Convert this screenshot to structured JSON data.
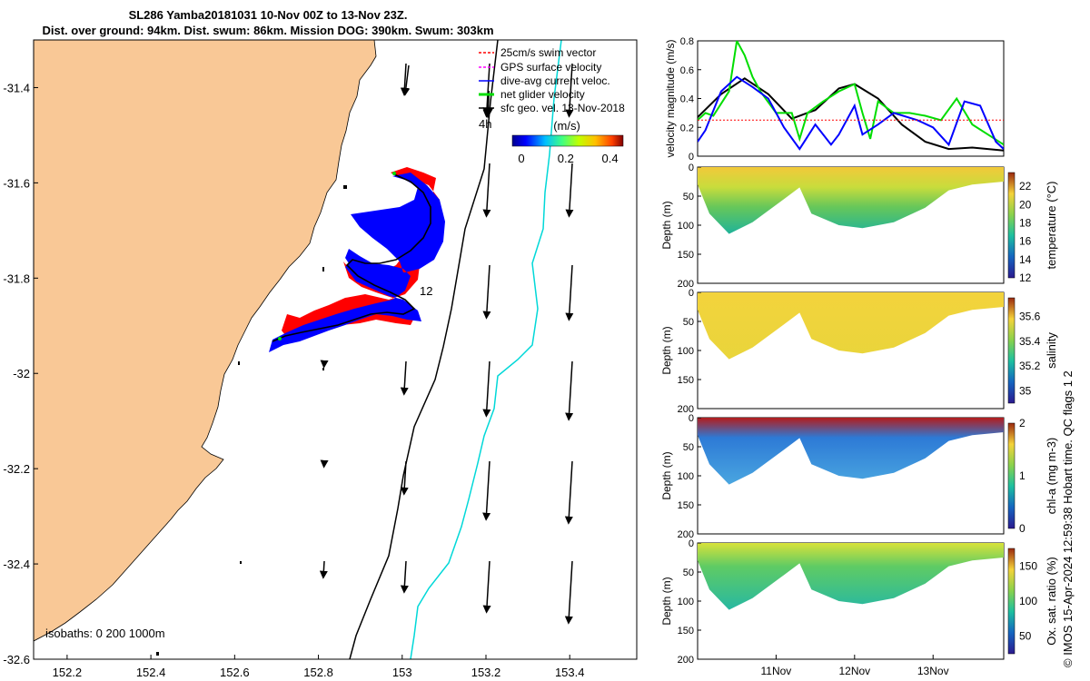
{
  "title_line1": "SL286 Yamba20181031 10-Nov 00Z to 13-Nov 23Z.",
  "title_line2": "Dist. over ground: 94km. Dist. swum: 86km. Mission DOG: 390km. Swum: 303km",
  "footer": "© IMOS 15-Apr-2024 12:59:38 Hobart time. QC flags 1  2",
  "map": {
    "x_ticks": [
      "152.2",
      "152.4",
      "152.6",
      "152.8",
      "153",
      "153.2",
      "153.4"
    ],
    "y_ticks": [
      "-31.4",
      "-31.6",
      "-31.8",
      "-32",
      "-32.2",
      "-32.4",
      "-32.6"
    ],
    "xlim": [
      152.12,
      153.56
    ],
    "ylim": [
      -32.6,
      -31.3
    ],
    "isobath_label": "isobaths: 0   200  1000m",
    "label_4h": "4h",
    "label_12": "12",
    "legend": [
      {
        "label": "25cm/s swim vector",
        "color": "#ff0000"
      },
      {
        "label": "GPS surface velocity",
        "color": "#ff00ff"
      },
      {
        "label": "dive-avg current veloc.",
        "color": "#0000ff"
      },
      {
        "label": "net glider velocity",
        "color": "#00dd00"
      },
      {
        "label": "sfc geo. vel. 13-Nov-2018",
        "color": "#000000"
      }
    ],
    "colorbar": {
      "unit": "(m/s)",
      "ticks": [
        "0",
        "0.2",
        "0.4"
      ]
    },
    "colors": {
      "land": "#f9c896",
      "track_blue": "#0000ff",
      "track_red": "#ff0000",
      "isobath_200": "#000000",
      "isobath_1000": "#00d8d8"
    }
  },
  "chart_data": [
    {
      "type": "line",
      "ylabel": "velocity magnitude (m/s)",
      "ylim": [
        0,
        0.8
      ],
      "yticks": [
        "0",
        "0.2",
        "0.4",
        "0.6",
        "0.8"
      ],
      "series": [
        {
          "color": "#000000",
          "x": [
            0,
            0.3,
            0.6,
            0.9,
            1.2,
            1.5,
            1.8,
            2.0,
            2.3,
            2.6,
            2.9,
            3.2,
            3.5,
            3.9
          ],
          "values": [
            0.27,
            0.43,
            0.54,
            0.43,
            0.26,
            0.32,
            0.47,
            0.5,
            0.4,
            0.22,
            0.1,
            0.05,
            0.06,
            0.04
          ]
        },
        {
          "color": "#00dd00",
          "x": [
            0,
            0.1,
            0.2,
            0.4,
            0.5,
            0.6,
            0.7,
            0.8,
            1.0,
            1.2,
            1.3,
            1.4,
            1.6,
            1.8,
            2.0,
            2.1,
            2.2,
            2.3,
            2.5,
            2.7,
            2.9,
            3.1,
            3.3,
            3.5,
            3.7,
            3.9
          ],
          "values": [
            0.25,
            0.3,
            0.28,
            0.45,
            0.8,
            0.7,
            0.55,
            0.45,
            0.3,
            0.3,
            0.12,
            0.3,
            0.38,
            0.45,
            0.5,
            0.3,
            0.12,
            0.38,
            0.3,
            0.3,
            0.28,
            0.25,
            0.4,
            0.22,
            0.15,
            0.08
          ]
        },
        {
          "color": "#0000ff",
          "x": [
            0,
            0.1,
            0.3,
            0.5,
            0.7,
            0.9,
            1.1,
            1.3,
            1.5,
            1.7,
            1.8,
            2.0,
            2.1,
            2.3,
            2.5,
            2.8,
            3.0,
            3.2,
            3.4,
            3.6,
            3.8,
            3.9
          ],
          "values": [
            0.1,
            0.18,
            0.45,
            0.55,
            0.48,
            0.4,
            0.2,
            0.05,
            0.22,
            0.08,
            0.15,
            0.35,
            0.15,
            0.22,
            0.3,
            0.25,
            0.2,
            0.08,
            0.38,
            0.35,
            0.1,
            0.05
          ]
        },
        {
          "color": "#ff0000",
          "x": [
            0,
            3.9
          ],
          "values": [
            0.25,
            0.25
          ]
        }
      ]
    },
    {
      "type": "heatmap",
      "ylabel": "Depth (m)",
      "ylim": [
        200,
        0
      ],
      "yticks": [
        "0",
        "50",
        "100",
        "150",
        "200"
      ],
      "clabel": "temperature (°C)",
      "cticks": [
        "12",
        "14",
        "16",
        "18",
        "20",
        "22"
      ],
      "crange": [
        12,
        23.5
      ]
    },
    {
      "type": "heatmap",
      "ylabel": "Depth (m)",
      "ylim": [
        200,
        0
      ],
      "yticks": [
        "0",
        "50",
        "100",
        "150",
        "200"
      ],
      "clabel": "salinity",
      "cticks": [
        "35",
        "35.2",
        "35.4",
        "35.6"
      ],
      "crange": [
        34.9,
        35.75
      ]
    },
    {
      "type": "heatmap",
      "ylabel": "Depth (m)",
      "ylim": [
        200,
        0
      ],
      "yticks": [
        "0",
        "50",
        "100",
        "150",
        "200"
      ],
      "clabel": "chl-a (mg m-3)",
      "cticks": [
        "0",
        "1",
        "2"
      ],
      "crange": [
        0,
        2
      ]
    },
    {
      "type": "heatmap",
      "ylabel": "Depth (m)",
      "ylim": [
        200,
        0
      ],
      "yticks": [
        "0",
        "50",
        "100",
        "150",
        "200"
      ],
      "clabel": "Ox. sat. ratio (%)",
      "cticks": [
        "50",
        "100",
        "150"
      ],
      "crange": [
        25,
        175
      ]
    }
  ],
  "time_ticks": [
    "11Nov",
    "12Nov",
    "13Nov"
  ]
}
